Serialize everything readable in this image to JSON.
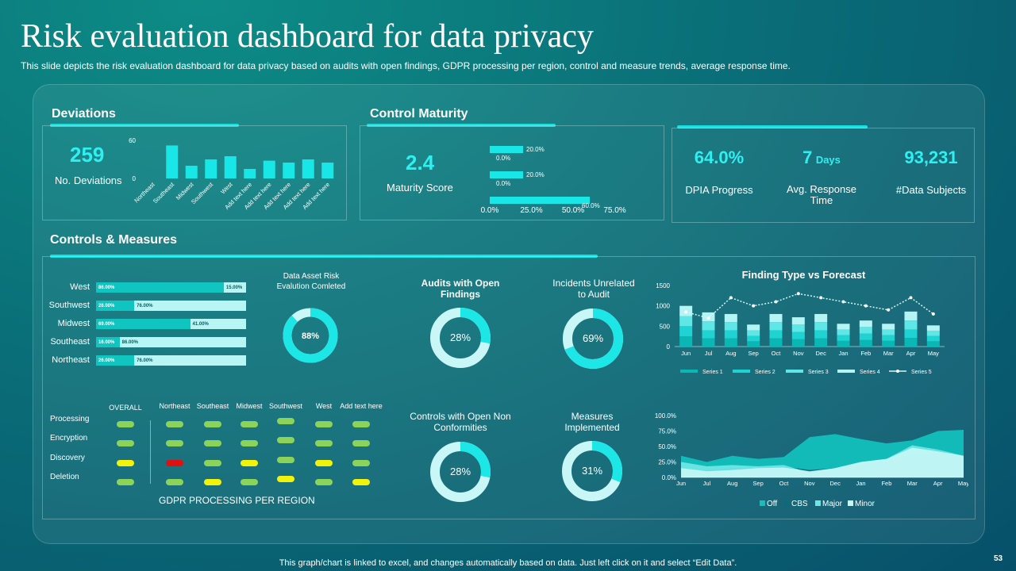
{
  "page": {
    "title": "Risk evaluation dashboard for data privacy",
    "subtitle": "This slide depicts the risk evaluation dashboard for data privacy  based on audits with open findings, GDPR processing per region, control and measure trends, average response time.",
    "footer": "This graph/chart is linked to excel,  and changes automatically based on data. Just left click on it and select “Edit Data”.",
    "page_number": "53"
  },
  "colors": {
    "accent": "#19e0e0",
    "teal_dark": "#07a8a8",
    "teal_mid": "#1fd3d3",
    "teal_light": "#9ff4f4",
    "green": "#8cd35a",
    "yellow": "#f2f20a",
    "red": "#e01010"
  },
  "deviations": {
    "title": "Deviations",
    "value": "259",
    "label": "No. Deviations"
  },
  "control_maturity": {
    "title": "Control Maturity",
    "value": "2.4",
    "label": "Maturity Score"
  },
  "kpis": [
    {
      "value": "64.0%",
      "unit": "",
      "label": "DPIA Progress"
    },
    {
      "value": "7",
      "unit": "Days",
      "label": "Avg. Response Time"
    },
    {
      "value": "93,231",
      "unit": "",
      "label": "#Data Subjects"
    }
  ],
  "controls": {
    "title": "Controls & Measures",
    "regions": [
      {
        "name": "West",
        "a": "86.00%",
        "b": "15.00%",
        "a_val": 86,
        "b_val": 15
      },
      {
        "name": "Southwest",
        "a": "26.00%",
        "b": "76.00%",
        "a_val": 26,
        "b_val": 76
      },
      {
        "name": "Midwest",
        "a": "69.00%",
        "b": "41.00%",
        "a_val": 69,
        "b_val": 41
      },
      {
        "name": "Southeast",
        "a": "16.00%",
        "b": "86.00%",
        "a_val": 16,
        "b_val": 86
      },
      {
        "name": "Northeast",
        "a": "26.00%",
        "b": "76.00%",
        "a_val": 26,
        "b_val": 76
      }
    ],
    "donuts": [
      {
        "title": "Data Asset Risk Evalution Comleted",
        "value": "88%",
        "pct": 88
      },
      {
        "title": "Audits  with Open Findings",
        "value": "28%",
        "pct": 28
      },
      {
        "title": "Incidents Unrelated to Audit",
        "value": "69%",
        "pct": 69
      },
      {
        "title": "Controls with Open Non Conformities",
        "value": "28%",
        "pct": 28
      },
      {
        "title": "Measures Implemented",
        "value": "31%",
        "pct": 31
      }
    ],
    "gdpr": {
      "label": "GDPR PROCESSING PER REGION",
      "columns": [
        "OVERALL",
        "Northeast",
        "Southeast",
        "Midwest",
        "Southwest",
        "West",
        "Add text here"
      ],
      "rows": [
        {
          "name": "Processing",
          "status": [
            "green",
            "green",
            "green",
            "green",
            "green",
            "green",
            "green"
          ]
        },
        {
          "name": "Encryption",
          "status": [
            "green",
            "green",
            "green",
            "green",
            "green",
            "green",
            "green"
          ]
        },
        {
          "name": "Discovery",
          "status": [
            "yellow",
            "red",
            "green",
            "yellow",
            "green",
            "yellow",
            "green"
          ]
        },
        {
          "name": "Deletion",
          "status": [
            "green",
            "green",
            "yellow",
            "green",
            "yellow",
            "green",
            "yellow"
          ]
        }
      ]
    }
  },
  "chart_data": [
    {
      "id": "deviations",
      "type": "bar",
      "categories": [
        "Northeast",
        "Southeast",
        "Midwest",
        "Southwest",
        "West",
        "Add text here",
        "Add text here",
        "Add text here",
        "Add text here",
        "Add text here"
      ],
      "values": [
        0,
        52,
        20,
        30,
        35,
        15,
        28,
        25,
        30,
        25
      ],
      "ylim": [
        0,
        60
      ],
      "yticks": [
        "0",
        "60"
      ]
    },
    {
      "id": "control_maturity",
      "type": "bar",
      "orientation": "horizontal",
      "values": [
        20,
        0,
        20,
        0,
        60
      ],
      "data_labels": [
        "20.0%",
        "0.0%",
        "20.0%",
        "0.0%",
        "60.0%"
      ],
      "xlim": [
        0,
        75
      ],
      "xticks": [
        "0.0%",
        "25.0%",
        "50.0%",
        "75.0%"
      ]
    },
    {
      "id": "finding_type",
      "type": "bar",
      "title": "Finding Type vs Forecast",
      "categories": [
        "Jun",
        "Jul",
        "Aug",
        "Sep",
        "Oct",
        "Nov",
        "Dec",
        "Jan",
        "Feb",
        "Mar",
        "Apr",
        "May"
      ],
      "series": [
        {
          "name": "Series 1",
          "values": [
            250,
            200,
            200,
            130,
            200,
            180,
            200,
            140,
            160,
            140,
            210,
            130
          ]
        },
        {
          "name": "Series 2",
          "values": [
            250,
            200,
            200,
            130,
            200,
            180,
            200,
            140,
            160,
            140,
            210,
            130
          ]
        },
        {
          "name": "Series 3",
          "values": [
            250,
            220,
            200,
            140,
            200,
            180,
            200,
            140,
            160,
            140,
            220,
            130
          ]
        },
        {
          "name": "Series 4",
          "values": [
            250,
            220,
            200,
            140,
            200,
            180,
            200,
            140,
            160,
            140,
            220,
            130
          ]
        },
        {
          "name": "Series 5",
          "type": "line",
          "values": [
            850,
            700,
            1200,
            1000,
            1100,
            1300,
            1200,
            1100,
            1000,
            900,
            1200,
            800
          ]
        }
      ],
      "ylim": [
        0,
        1500
      ],
      "yticks": [
        "0",
        "500",
        "1000",
        "1500"
      ]
    },
    {
      "id": "trend",
      "type": "area",
      "categories": [
        "Jun",
        "Jul",
        "Aug",
        "Sep",
        "Oct",
        "Nov",
        "Dec",
        "Jan",
        "Feb",
        "Mar",
        "Apr",
        "May"
      ],
      "series": [
        {
          "name": "Off",
          "values": [
            35,
            25,
            35,
            30,
            33,
            65,
            70,
            62,
            55,
            60,
            75,
            77
          ]
        },
        {
          "name": "CBS",
          "values": [
            10,
            12,
            15,
            15,
            18,
            12,
            15,
            20,
            25,
            35,
            45,
            30
          ]
        },
        {
          "name": "Major",
          "values": [
            25,
            18,
            20,
            18,
            20,
            8,
            15,
            25,
            30,
            52,
            45,
            35
          ]
        },
        {
          "name": "Minor",
          "values": [
            15,
            10,
            12,
            15,
            16,
            10,
            15,
            25,
            30,
            48,
            42,
            35
          ]
        }
      ],
      "ylim": [
        0,
        100
      ],
      "yticks": [
        "0.0%",
        "25.0%",
        "50.0%",
        "75.0%",
        "100.0%"
      ]
    }
  ]
}
